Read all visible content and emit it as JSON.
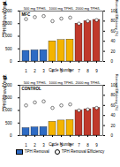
{
  "chart_data": [
    {
      "type": "bar",
      "title": "a",
      "annotations": [
        "MFC",
        "500 mg TPH/L",
        "1000 mg TPH/L",
        "2000 mg TPH/L"
      ],
      "x_label": "Cycle Number",
      "y_label": "TPH Removal (mg/L)",
      "y2_label": "TPH Removal Efficiency (%)",
      "categories": [
        "1",
        "2",
        "3",
        "4",
        "5",
        "6",
        "7",
        "8",
        "9"
      ],
      "series": [
        {
          "name": "TPH Removal",
          "type": "bar",
          "colors": [
            "#2e6bc4",
            "#2e6bc4",
            "#2e6bc4",
            "#f4b400",
            "#f4b400",
            "#f4b400",
            "#c0392b",
            "#c0392b",
            "#c0392b"
          ],
          "values": [
            420,
            440,
            450,
            800,
            850,
            870,
            1500,
            1600,
            1650
          ]
        },
        {
          "name": "TPH Removal Efficiency",
          "type": "scatter",
          "axis": "y2",
          "color": "#ffffff",
          "marker": "circle",
          "values": [
            84,
            88,
            90,
            80,
            85,
            87,
            75,
            80,
            82
          ]
        }
      ],
      "ylim": [
        0,
        2000
      ],
      "yticks": [
        0,
        500,
        1000,
        1500,
        2000
      ],
      "y2lim": [
        0,
        100
      ],
      "y2ticks": [
        0,
        20,
        40,
        60,
        80,
        100
      ]
    },
    {
      "type": "bar",
      "title": "b",
      "annotations": [
        "CONTROL",
        "500 mg TPH/L",
        "1000 mg TPH/L",
        "2000 mg TPH/L"
      ],
      "x_label": "Cycle Number",
      "y_label": "TPH Removal (mg/L)",
      "y2_label": "TPH Removal Efficiency (%)",
      "categories": [
        "1",
        "2",
        "3",
        "4",
        "5",
        "6",
        "7",
        "8",
        "9"
      ],
      "series": [
        {
          "name": "TPH Removal",
          "type": "bar",
          "colors": [
            "#2e6bc4",
            "#2e6bc4",
            "#2e6bc4",
            "#f4b400",
            "#f4b400",
            "#f4b400",
            "#c0392b",
            "#c0392b",
            "#c0392b"
          ],
          "values": [
            300,
            330,
            340,
            550,
            600,
            620,
            1000,
            1050,
            1100
          ]
        },
        {
          "name": "TPH Removal Efficiency",
          "type": "scatter",
          "axis": "y2",
          "color": "#ffffff",
          "marker": "circle",
          "values": [
            60,
            66,
            68,
            55,
            60,
            62,
            50,
            52,
            55
          ]
        }
      ],
      "ylim": [
        0,
        2000
      ],
      "yticks": [
        0,
        500,
        1000,
        1500,
        2000
      ],
      "y2lim": [
        0,
        100
      ],
      "y2ticks": [
        0,
        20,
        40,
        60,
        80,
        100
      ],
      "legend": "bottom"
    }
  ]
}
